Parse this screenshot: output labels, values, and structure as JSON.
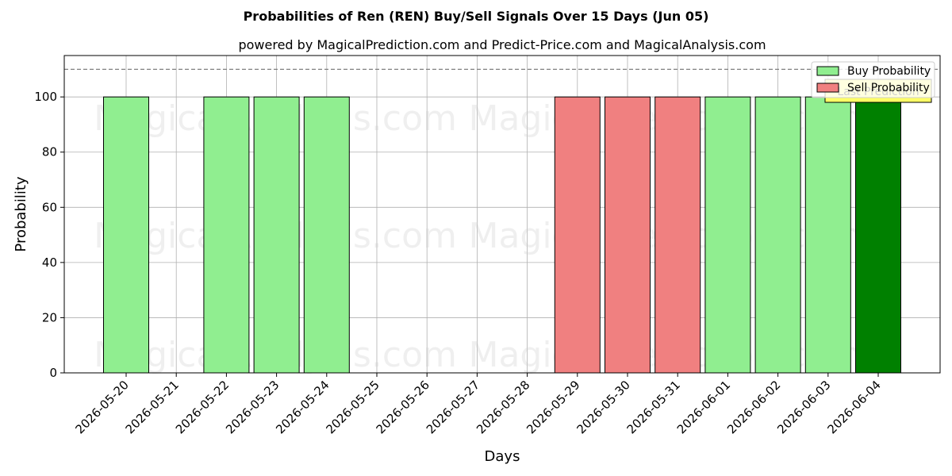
{
  "chart_data": {
    "type": "bar",
    "title": "Probabilities of Ren (REN) Buy/Sell Signals Over 15 Days (Jun 05)",
    "subtitle": "powered by MagicalPrediction.com and Predict-Price.com and MagicalAnalysis.com",
    "xlabel": "Days",
    "ylabel": "Probability",
    "ylim": [
      0,
      115
    ],
    "yticks": [
      0,
      20,
      40,
      60,
      80,
      100
    ],
    "reference_line": 110,
    "grid": true,
    "legend_position": "top-right",
    "categories": [
      "2026-05-20",
      "2026-05-21",
      "2026-05-22",
      "2026-05-23",
      "2026-05-24",
      "2026-05-25",
      "2026-05-26",
      "2026-05-27",
      "2026-05-28",
      "2026-05-29",
      "2026-05-30",
      "2026-05-31",
      "2026-06-01",
      "2026-06-02",
      "2026-06-03",
      "2026-06-04"
    ],
    "series": [
      {
        "name": "Buy Probability",
        "color": "#90ee90",
        "values": [
          100,
          null,
          100,
          100,
          100,
          null,
          null,
          null,
          null,
          null,
          null,
          null,
          100,
          100,
          100,
          100
        ]
      },
      {
        "name": "Sell Probability",
        "color": "#f08080",
        "values": [
          null,
          null,
          null,
          null,
          null,
          null,
          null,
          null,
          null,
          100,
          100,
          100,
          null,
          null,
          null,
          null
        ]
      }
    ],
    "highlight": {
      "category": "2026-06-04",
      "color": "#008000"
    },
    "hidden_label": "Last Prediction",
    "watermarks": [
      "MagicalAnalysis.com",
      "MagicalPrediction.com"
    ]
  }
}
